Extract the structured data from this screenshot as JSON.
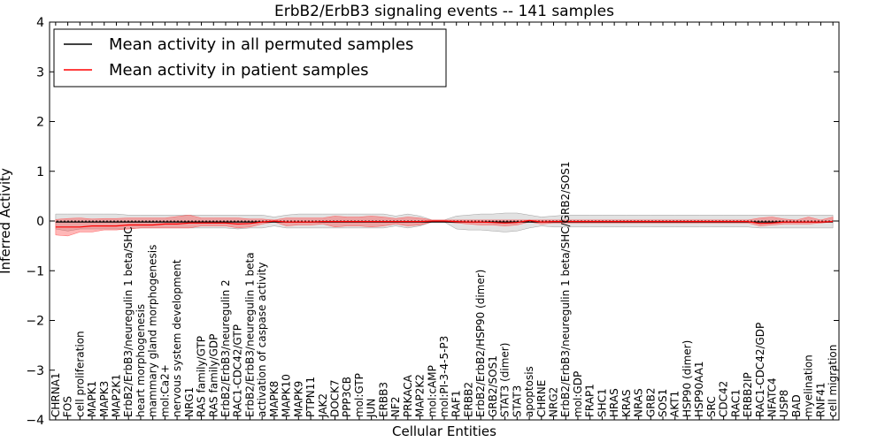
{
  "chart_data": {
    "type": "line",
    "title": "ErbB2/ErbB3 signaling events -- 141 samples",
    "xlabel": "Cellular Entities",
    "ylabel": "Inferred Activity",
    "ylim": [
      -4,
      4
    ],
    "yticks": [
      -4,
      -3,
      -2,
      -1,
      0,
      1,
      2,
      3,
      4
    ],
    "ytick_labels": [
      "−4",
      "−3",
      "−2",
      "−1",
      "0",
      "1",
      "2",
      "3",
      "4"
    ],
    "legend_position": "top-left",
    "categories": [
      "CHRNA1",
      "FOS",
      "cell proliferation",
      "MAPK1",
      "MAPK3",
      "MAP2K1",
      "ErbB2/ErbB3/neuregulin 1 beta/SHC",
      "heart morphogenesis",
      "mammary gland morphogenesis",
      "mol:Ca2+",
      "nervous system development",
      "NRG1",
      "RAS family/GTP",
      "RAS family/GDP",
      "ErbB2/ErbB3/neuregulin 2",
      "RAC1-CDC42/GTP",
      "ErbB2/ErbB3/neuregulin 1 beta",
      "activation of caspase activity",
      "MAPK8",
      "MAPK10",
      "MAPK9",
      "PTPN11",
      "JAK2",
      "DOCK7",
      "PPP3CB",
      "mol:GTP",
      "JUN",
      "ERBB3",
      "NF2",
      "PRKACA",
      "MAP2K2",
      "mol:cAMP",
      "mol:PI-3-4-5-P3",
      "RAF1",
      "ERBB2",
      "ErbB2/ErbB2/HSP90 (dimer)",
      "GRB2/SOS1",
      "STAT3 (dimer)",
      "STAT3",
      "apoptosis",
      "CHRNE",
      "NRG2",
      "ErbB2/ErbB3/neuregulin 1 beta/SHC/GRB2/SOS1",
      "mol:GDP",
      "FRAP1",
      "SHC1",
      "HRAS",
      "KRAS",
      "NRAS",
      "GRB2",
      "SOS1",
      "AKT1",
      "HSP90 (dimer)",
      "HSP90AA1",
      "SRC",
      "CDC42",
      "RAC1",
      "ERBB2IP",
      "RAC1-CDC42/GDP",
      "NFATC4",
      "USP8",
      "BAD",
      "myelination",
      "RNF41",
      "cell migration"
    ],
    "series": [
      {
        "name": "Mean activity in all permuted samples",
        "color": "#000000",
        "values": [
          -0.02,
          -0.02,
          -0.02,
          -0.02,
          -0.02,
          -0.02,
          -0.02,
          -0.02,
          -0.02,
          -0.02,
          -0.02,
          -0.02,
          -0.02,
          -0.02,
          -0.02,
          -0.02,
          -0.02,
          -0.02,
          -0.02,
          -0.02,
          -0.02,
          -0.02,
          -0.02,
          -0.02,
          -0.02,
          -0.02,
          -0.02,
          -0.02,
          -0.02,
          -0.02,
          -0.02,
          -0.02,
          -0.02,
          -0.02,
          -0.02,
          -0.02,
          -0.02,
          -0.02,
          -0.02,
          -0.02,
          -0.02,
          -0.02,
          -0.02,
          -0.02,
          -0.02,
          -0.02,
          -0.02,
          -0.02,
          -0.02,
          -0.02,
          -0.02,
          -0.02,
          -0.02,
          -0.02,
          -0.02,
          -0.02,
          -0.02,
          -0.02,
          -0.02,
          -0.02,
          -0.02,
          -0.02,
          -0.02,
          -0.02,
          -0.02
        ]
      },
      {
        "name": "Mean activity in patient samples",
        "color": "#ff0000",
        "values": [
          -0.12,
          -0.12,
          -0.12,
          -0.1,
          -0.1,
          -0.1,
          -0.08,
          -0.08,
          -0.08,
          -0.06,
          -0.06,
          -0.04,
          -0.04,
          -0.04,
          -0.04,
          -0.06,
          -0.05,
          -0.02,
          0.0,
          -0.02,
          -0.02,
          -0.02,
          -0.01,
          -0.01,
          -0.01,
          -0.01,
          -0.01,
          -0.01,
          -0.01,
          -0.01,
          -0.01,
          0.0,
          0.0,
          -0.01,
          -0.02,
          -0.02,
          -0.03,
          -0.04,
          -0.03,
          0.01,
          -0.02,
          -0.01,
          -0.01,
          -0.01,
          -0.01,
          -0.01,
          -0.01,
          -0.01,
          -0.01,
          -0.01,
          -0.01,
          -0.01,
          -0.01,
          -0.01,
          -0.01,
          -0.01,
          -0.01,
          -0.01,
          -0.05,
          -0.04,
          -0.02,
          -0.02,
          -0.02,
          -0.02,
          -0.01
        ]
      }
    ],
    "patient_band": {
      "upper": [
        0.03,
        0.05,
        0.06,
        0.04,
        0.05,
        0.05,
        0.06,
        0.06,
        0.06,
        0.06,
        0.09,
        0.12,
        0.06,
        0.06,
        0.06,
        0.06,
        0.04,
        0.04,
        0.02,
        0.06,
        0.06,
        0.06,
        0.06,
        0.1,
        0.08,
        0.08,
        0.1,
        0.08,
        0.05,
        0.08,
        0.06,
        0.02,
        0.02,
        0.02,
        0.02,
        0.02,
        0.02,
        0.02,
        0.02,
        0.02,
        0.02,
        0.02,
        0.02,
        0.02,
        0.02,
        0.02,
        0.02,
        0.02,
        0.02,
        0.02,
        0.02,
        0.02,
        0.02,
        0.02,
        0.02,
        0.02,
        0.02,
        0.02,
        0.06,
        0.08,
        0.04,
        0.02,
        0.08,
        0.02,
        0.08
      ],
      "lower": [
        -0.28,
        -0.3,
        -0.22,
        -0.22,
        -0.18,
        -0.18,
        -0.16,
        -0.14,
        -0.14,
        -0.14,
        -0.14,
        -0.14,
        -0.1,
        -0.1,
        -0.1,
        -0.14,
        -0.12,
        -0.06,
        -0.02,
        -0.1,
        -0.08,
        -0.08,
        -0.06,
        -0.12,
        -0.1,
        -0.1,
        -0.12,
        -0.1,
        -0.06,
        -0.1,
        -0.08,
        -0.02,
        -0.02,
        -0.04,
        -0.06,
        -0.08,
        -0.08,
        -0.1,
        -0.08,
        -0.02,
        -0.06,
        -0.04,
        -0.04,
        -0.04,
        -0.04,
        -0.04,
        -0.04,
        -0.04,
        -0.04,
        -0.04,
        -0.04,
        -0.04,
        -0.04,
        -0.04,
        -0.04,
        -0.04,
        -0.04,
        -0.04,
        -0.1,
        -0.08,
        -0.06,
        -0.06,
        -0.06,
        -0.04,
        -0.02
      ]
    },
    "permuted_band": {
      "upper": [
        0.14,
        0.14,
        0.14,
        0.14,
        0.14,
        0.14,
        0.12,
        0.12,
        0.12,
        0.12,
        0.12,
        0.12,
        0.12,
        0.12,
        0.12,
        0.12,
        0.12,
        0.12,
        0.08,
        0.12,
        0.14,
        0.14,
        0.14,
        0.14,
        0.14,
        0.14,
        0.14,
        0.14,
        0.1,
        0.14,
        0.1,
        0.02,
        0.02,
        0.1,
        0.12,
        0.14,
        0.14,
        0.16,
        0.16,
        0.12,
        0.08,
        0.1,
        0.12,
        0.12,
        0.12,
        0.12,
        0.12,
        0.12,
        0.12,
        0.12,
        0.12,
        0.12,
        0.12,
        0.12,
        0.12,
        0.12,
        0.12,
        0.12,
        0.12,
        0.12,
        0.12,
        0.12,
        0.12,
        0.12,
        0.12
      ],
      "lower": [
        -0.16,
        -0.2,
        -0.16,
        -0.16,
        -0.16,
        -0.16,
        -0.16,
        -0.14,
        -0.14,
        -0.14,
        -0.14,
        -0.14,
        -0.14,
        -0.14,
        -0.14,
        -0.16,
        -0.14,
        -0.14,
        -0.1,
        -0.14,
        -0.14,
        -0.14,
        -0.14,
        -0.14,
        -0.14,
        -0.14,
        -0.14,
        -0.14,
        -0.1,
        -0.14,
        -0.1,
        -0.02,
        -0.02,
        -0.16,
        -0.18,
        -0.18,
        -0.2,
        -0.22,
        -0.2,
        -0.14,
        -0.1,
        -0.12,
        -0.12,
        -0.12,
        -0.12,
        -0.12,
        -0.12,
        -0.12,
        -0.12,
        -0.12,
        -0.12,
        -0.12,
        -0.12,
        -0.12,
        -0.12,
        -0.12,
        -0.12,
        -0.12,
        -0.14,
        -0.14,
        -0.14,
        -0.14,
        -0.14,
        -0.14,
        -0.14
      ]
    }
  }
}
